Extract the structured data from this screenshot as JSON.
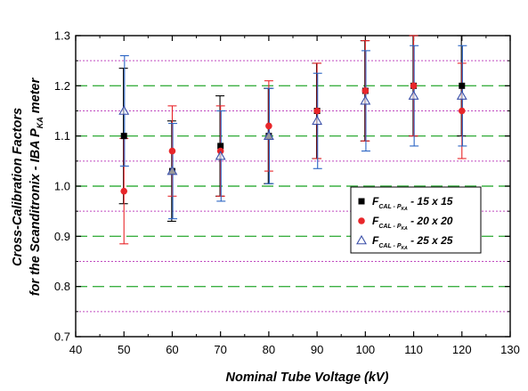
{
  "chart_data": {
    "type": "scatter",
    "title": "",
    "xlabel": "Nominal Tube Voltage (kV)",
    "ylabel": {
      "line1": "Cross-Calibration Factors",
      "line2_main": "for the Scanditronix - IBA P",
      "line2_sub": "KA",
      "line2_end": " meter"
    },
    "xlim": [
      40,
      130
    ],
    "ylim": [
      0.7,
      1.3
    ],
    "xticks": [
      "40",
      "50",
      "60",
      "70",
      "80",
      "90",
      "100",
      "110",
      "120",
      "130"
    ],
    "yticks": [
      "0.7",
      "0.8",
      "0.9",
      "1.0",
      "1.1",
      "1.2",
      "1.3"
    ],
    "legend_position": "center-right",
    "reference_lines": {
      "green_dashed": [
        0.8,
        0.9,
        1.0,
        1.1,
        1.2
      ],
      "magenta_dotted": [
        0.75,
        0.85,
        0.95,
        1.05,
        1.15,
        1.25
      ]
    },
    "series": [
      {
        "name_main": "F",
        "name_sub": "CAL - P",
        "name_subsub": "KA",
        "name_rest": " - 15 x 15",
        "marker": "square",
        "color": "#000000",
        "x": [
          50,
          60,
          70,
          80,
          90,
          100,
          110,
          120
        ],
        "y": [
          1.1,
          1.03,
          1.08,
          1.1,
          1.15,
          1.19,
          1.2,
          1.2
        ],
        "err": [
          0.135,
          0.1,
          0.1,
          0.095,
          0.095,
          0.1,
          0.1,
          0.1
        ]
      },
      {
        "name_main": "F",
        "name_sub": "CAL - P",
        "name_subsub": "KA",
        "name_rest": " - 20 x 20",
        "marker": "circle",
        "color": "#e8262a",
        "x": [
          50,
          60,
          70,
          80,
          90,
          100,
          110,
          120
        ],
        "y": [
          0.99,
          1.07,
          1.07,
          1.12,
          1.15,
          1.19,
          1.2,
          1.15
        ],
        "err": [
          0.105,
          0.09,
          0.09,
          0.09,
          0.095,
          0.1,
          0.1,
          0.095
        ]
      },
      {
        "name_main": "F",
        "name_sub": "CAL - P",
        "name_subsub": "KA",
        "name_rest": " - 25 x 25",
        "marker": "triangle",
        "color": "#3a4fa8",
        "x": [
          50,
          60,
          70,
          80,
          90,
          100,
          110,
          120
        ],
        "y": [
          1.15,
          1.03,
          1.06,
          1.1,
          1.13,
          1.17,
          1.18,
          1.18
        ],
        "err": [
          0.11,
          0.095,
          0.09,
          0.095,
          0.095,
          0.1,
          0.1,
          0.1
        ]
      }
    ]
  },
  "colors": {
    "green_line": "#3cb043",
    "magenta_line": "#c04ac0",
    "series_error_bar": "#2a64c4"
  }
}
